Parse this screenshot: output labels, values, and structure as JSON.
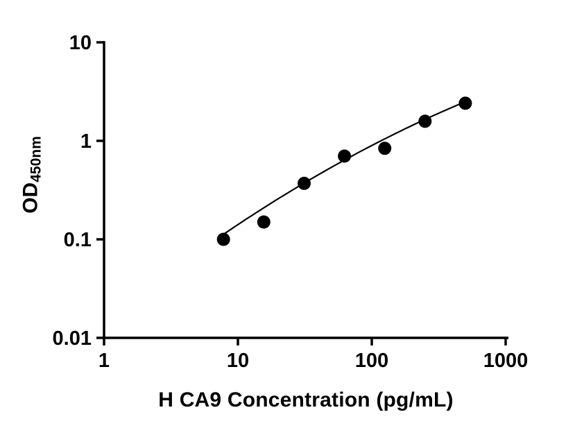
{
  "figure": {
    "background": "#ffffff"
  },
  "chart_data": {
    "type": "scatter",
    "title": "",
    "xlabel": "H CA9 Concentration (pg/mL)",
    "ylabel_main": "OD",
    "ylabel_sub": "450nm",
    "x_scale": "log10",
    "y_scale": "log10",
    "xlim": [
      1,
      1000
    ],
    "ylim": [
      0.01,
      10
    ],
    "x_ticks": [
      1,
      10,
      100,
      1000
    ],
    "x_tick_labels": [
      "1",
      "10",
      "100",
      "1000"
    ],
    "y_ticks": [
      10,
      1,
      0.1,
      0.01
    ],
    "y_tick_labels": [
      "10",
      "1",
      "0.1",
      "0.01"
    ],
    "grid": false,
    "legend": null,
    "points": [
      {
        "x": 7.8,
        "y": 0.1
      },
      {
        "x": 15.6,
        "y": 0.15
      },
      {
        "x": 31.25,
        "y": 0.37
      },
      {
        "x": 62.5,
        "y": 0.7
      },
      {
        "x": 125,
        "y": 0.84
      },
      {
        "x": 250,
        "y": 1.58
      },
      {
        "x": 500,
        "y": 2.41
      }
    ],
    "fit_curve": {
      "model": "quadratic-in-log10",
      "coeffs_vlog": [
        -0.0986,
        1.099,
        -1.851
      ],
      "x_range": [
        7.8,
        500
      ]
    },
    "point_color": "#000000",
    "line_color": "#000000",
    "axis_color": "#000000"
  }
}
